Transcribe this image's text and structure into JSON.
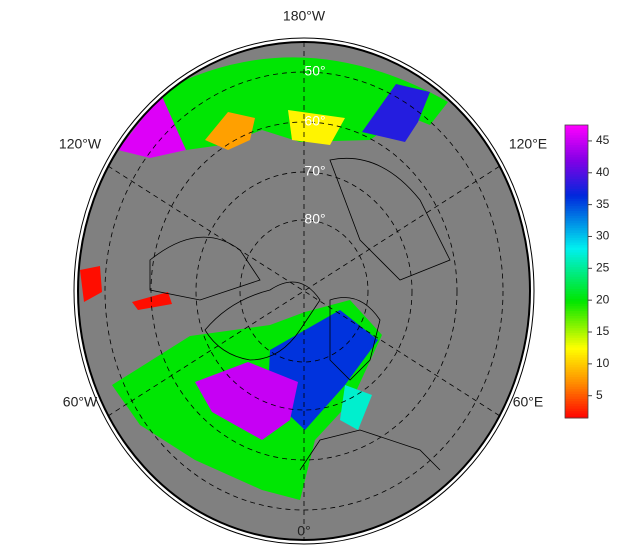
{
  "map": {
    "longitude_labels": [
      "180°W",
      "120°W",
      "120°E",
      "60°W",
      "60°E",
      "0°"
    ],
    "latitude_labels": [
      "50°",
      "60°",
      "70°",
      "80°"
    ],
    "field_values": [
      46,
      20,
      8,
      38,
      20,
      36,
      45,
      2,
      2,
      27,
      12
    ],
    "colorbar": {
      "lim": [
        1.5,
        47.5
      ],
      "ticks": [
        5,
        10,
        15,
        20,
        25,
        30,
        35,
        40,
        45
      ]
    }
  }
}
